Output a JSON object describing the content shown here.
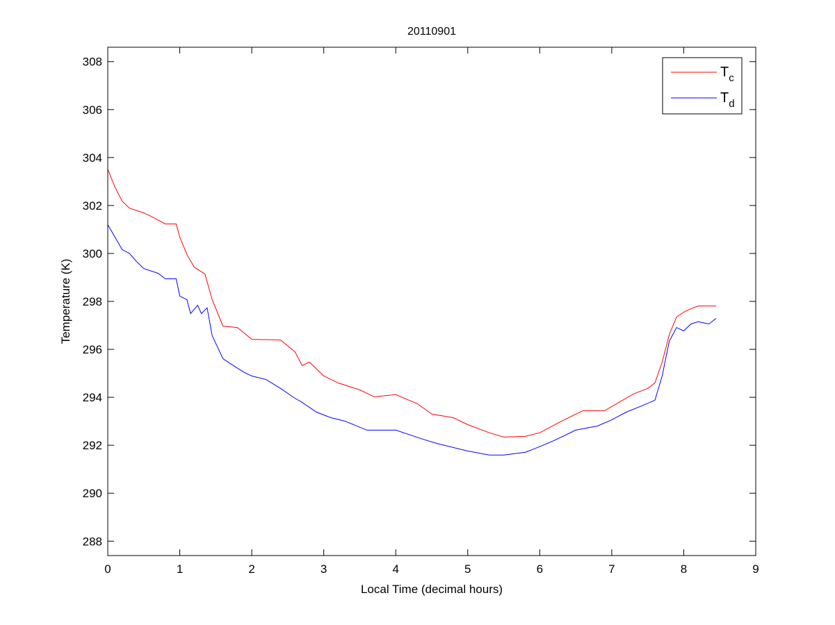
{
  "chart_data": {
    "type": "line",
    "title": "20110901",
    "xlabel": "Local Time (decimal hours)",
    "ylabel": "Temperature (K)",
    "xlim": [
      0,
      9
    ],
    "ylim": [
      287.4,
      308.6
    ],
    "xticks": [
      0,
      1,
      2,
      3,
      4,
      5,
      6,
      7,
      8,
      9
    ],
    "yticks": [
      288,
      290,
      292,
      294,
      296,
      298,
      300,
      302,
      304,
      306,
      308
    ],
    "grid": false,
    "legend_position": "top-right",
    "series": [
      {
        "name": "T",
        "subscript": "c",
        "color": "#ff0000",
        "x": [
          0,
          0.1,
          0.2,
          0.3,
          0.5,
          0.6,
          0.8,
          0.95,
          1.0,
          1.1,
          1.2,
          1.35,
          1.45,
          1.6,
          1.8,
          2.0,
          2.4,
          2.6,
          2.7,
          2.8,
          3.0,
          3.2,
          3.5,
          3.7,
          4.0,
          4.3,
          4.5,
          4.8,
          5.0,
          5.3,
          5.5,
          5.8,
          6.0,
          6.3,
          6.6,
          6.9,
          7.1,
          7.3,
          7.5,
          7.6,
          7.7,
          7.8,
          7.9,
          8.0,
          8.1,
          8.2,
          8.45
        ],
        "y": [
          303.51,
          302.76,
          302.18,
          301.89,
          301.69,
          301.55,
          301.23,
          301.23,
          300.68,
          299.95,
          299.43,
          299.14,
          298.07,
          296.97,
          296.91,
          296.42,
          296.39,
          295.9,
          295.32,
          295.47,
          294.89,
          294.6,
          294.31,
          294.02,
          294.11,
          293.73,
          293.3,
          293.15,
          292.86,
          292.52,
          292.34,
          292.37,
          292.52,
          293.0,
          293.44,
          293.44,
          293.79,
          294.14,
          294.37,
          294.6,
          295.47,
          296.62,
          297.35,
          297.55,
          297.7,
          297.81,
          297.81
        ]
      },
      {
        "name": "T",
        "subscript": "d",
        "color": "#0000ff",
        "x": [
          0,
          0.1,
          0.2,
          0.3,
          0.4,
          0.5,
          0.7,
          0.8,
          0.95,
          1.0,
          1.1,
          1.15,
          1.25,
          1.3,
          1.38,
          1.45,
          1.6,
          1.7,
          1.9,
          2.0,
          2.2,
          2.4,
          2.6,
          2.7,
          2.9,
          3.1,
          3.3,
          3.6,
          4.0,
          4.2,
          4.4,
          4.6,
          5.0,
          5.3,
          5.5,
          5.8,
          6.0,
          6.2,
          6.5,
          6.8,
          7.0,
          7.2,
          7.4,
          7.6,
          7.7,
          7.8,
          7.9,
          8.0,
          8.1,
          8.2,
          8.35,
          8.45
        ],
        "y": [
          301.2,
          300.68,
          300.16,
          300.0,
          299.66,
          299.37,
          299.17,
          298.94,
          298.94,
          298.22,
          298.07,
          297.49,
          297.84,
          297.49,
          297.73,
          296.57,
          295.61,
          295.41,
          295.03,
          294.89,
          294.74,
          294.37,
          293.96,
          293.79,
          293.38,
          293.15,
          293.0,
          292.63,
          292.63,
          292.43,
          292.23,
          292.05,
          291.76,
          291.59,
          291.59,
          291.71,
          291.94,
          292.2,
          292.63,
          292.8,
          293.06,
          293.38,
          293.62,
          293.88,
          294.89,
          296.34,
          296.91,
          296.77,
          297.06,
          297.15,
          297.06,
          297.29
        ]
      }
    ]
  }
}
